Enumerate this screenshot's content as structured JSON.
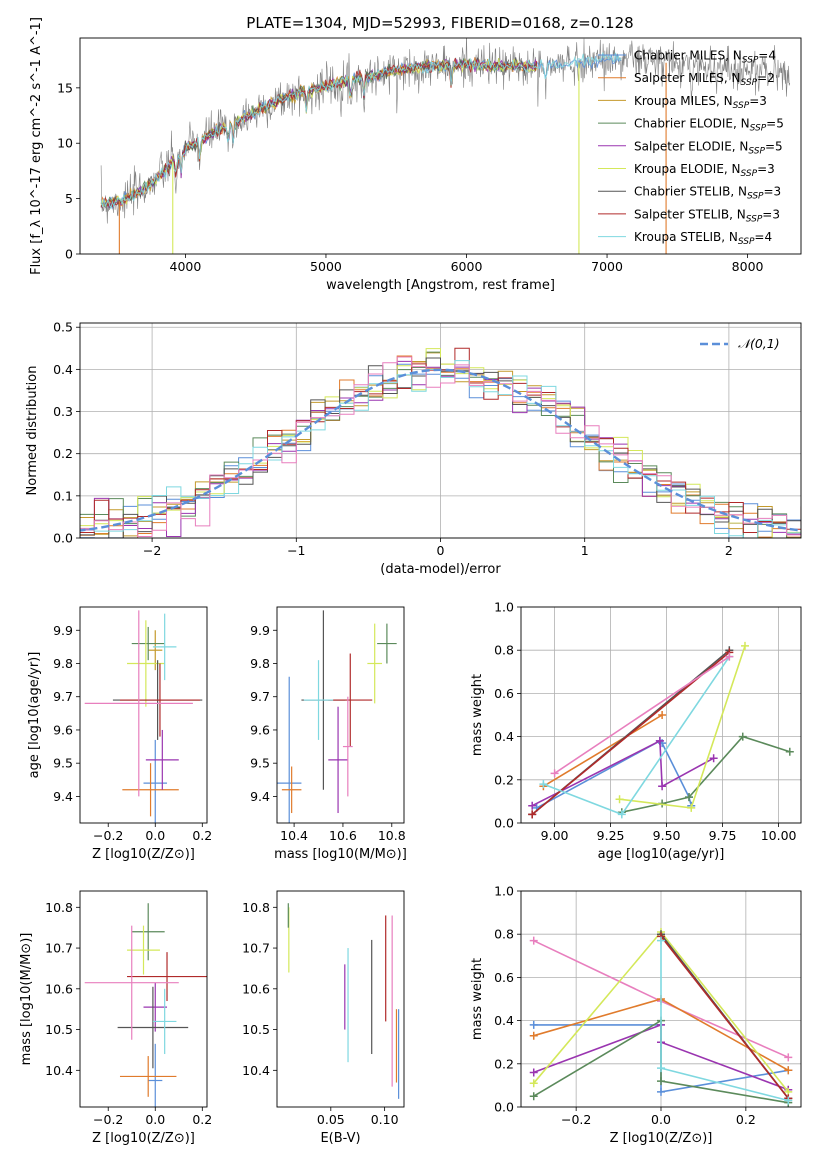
{
  "figure": {
    "title": "PLATE=1304, MJD=52993, FIBERID=0168, z=0.128",
    "colors": {
      "Chabrier MILES": "#5b8fd9",
      "Salpeter MILES": "#e07b2c",
      "Kroupa MILES": "#c49a2c",
      "Chabrier ELODIE": "#5b8a5b",
      "Salpeter ELODIE": "#9a35b0",
      "Kroupa ELODIE": "#d4e85a",
      "Chabrier STELIB": "#555555",
      "Salpeter STELIB": "#b02a2a",
      "Kroupa STELIB": "#7fd8e0",
      "pink": "#e87fbe",
      "normal_curve": "#5b8fd9"
    }
  },
  "chart_data": [
    {
      "id": "spectrum",
      "type": "line",
      "title": "PLATE=1304, MJD=52993, FIBERID=0168, z=0.128",
      "xlabel": "wavelength [Angstrom, rest frame]",
      "ylabel": "Flux [f_λ 10^-17 erg cm^-2 s^-1 A^-1]",
      "xlim": [
        3250,
        8380
      ],
      "ylim": [
        0,
        19.5
      ],
      "xticks": [
        4000,
        5000,
        6000,
        7000,
        8000
      ],
      "yticks": [
        0,
        5,
        10,
        15
      ],
      "legend": "top-right",
      "legend_entries": [
        "Chabrier MILES, N_SSP=4",
        "Salpeter MILES, N_SSP=2",
        "Kroupa MILES, N_SSP=3",
        "Chabrier ELODIE, N_SSP=5",
        "Salpeter ELODIE, N_SSP=5",
        "Kroupa ELODIE, N_SSP=3",
        "Chabrier STELIB, N_SSP=3",
        "Salpeter STELIB, N_SSP=3",
        "Kroupa STELIB, N_SSP=4"
      ],
      "continuum": {
        "x": [
          3400,
          3550,
          3700,
          3850,
          4000,
          4200,
          4400,
          4600,
          4800,
          5000,
          5200,
          5400,
          5600,
          5800,
          6000,
          6200,
          6400,
          6600,
          6800,
          7000,
          7200,
          7400,
          7600,
          7800,
          8000,
          8200,
          8300
        ],
        "y": [
          4.5,
          4.8,
          5.8,
          7.5,
          9.5,
          11.0,
          12.2,
          13.5,
          14.5,
          15.2,
          15.8,
          16.3,
          16.8,
          17.0,
          17.1,
          17.0,
          16.9,
          17.0,
          17.3,
          17.6,
          17.6,
          17.3,
          17.0,
          16.8,
          16.6,
          16.4,
          16.2
        ]
      },
      "model_drops": [
        {
          "series": "Salpeter MILES",
          "x": 3530
        },
        {
          "series": "Kroupa ELODIE",
          "x": 3910
        },
        {
          "series": "Kroupa ELODIE",
          "x": 6800
        },
        {
          "series": "Salpeter MILES",
          "x": 7420
        }
      ]
    },
    {
      "id": "residuals",
      "type": "histogram",
      "xlabel": "(data-model)/error",
      "ylabel": "Normed distribution",
      "xlim": [
        -2.5,
        2.5
      ],
      "ylim": [
        0,
        0.51
      ],
      "xticks": [
        -2,
        -1,
        0,
        1,
        2
      ],
      "yticks": [
        0.0,
        0.1,
        0.2,
        0.3,
        0.4,
        0.5
      ],
      "grid": true,
      "legend": "top-right",
      "legend_entries": [
        "𝒩(0,1)"
      ],
      "bin_width": 0.1
    },
    {
      "id": "age-vs-Z",
      "type": "errorbar",
      "xlabel": "Z [log10(Z/Z⊙)]",
      "ylabel": "age [log10(age/yr)]",
      "xlim": [
        -0.32,
        0.22
      ],
      "ylim": [
        9.32,
        9.97
      ],
      "xticks": [
        -0.2,
        0.0,
        0.2
      ],
      "yticks": [
        9.4,
        9.5,
        9.6,
        9.7,
        9.8,
        9.9
      ],
      "points": [
        {
          "series": "Chabrier MILES",
          "x": 0.0,
          "y": 9.44,
          "xerr": 0.05,
          "yerr": 0.13
        },
        {
          "series": "Salpeter MILES",
          "x": -0.02,
          "y": 9.42,
          "xerr": 0.12,
          "yerr": 0.08
        },
        {
          "series": "Kroupa MILES",
          "x": 0.0,
          "y": 9.84,
          "xerr": 0.03,
          "yerr": 0.06
        },
        {
          "series": "Chabrier ELODIE",
          "x": -0.03,
          "y": 9.86,
          "xerr": 0.07,
          "yerr": 0.05
        },
        {
          "series": "Salpeter ELODIE",
          "x": 0.03,
          "y": 9.51,
          "xerr": 0.07,
          "yerr": 0.09
        },
        {
          "series": "Kroupa ELODIE",
          "x": -0.04,
          "y": 9.8,
          "xerr": 0.08,
          "yerr": 0.13
        },
        {
          "series": "Chabrier STELIB",
          "x": 0.01,
          "y": 9.69,
          "xerr": 0.19,
          "yerr": 0.12
        },
        {
          "series": "Salpeter STELIB",
          "x": 0.02,
          "y": 9.69,
          "xerr": 0.17,
          "yerr": 0.11
        },
        {
          "series": "Kroupa STELIB",
          "x": 0.04,
          "y": 9.85,
          "xerr": 0.05,
          "yerr": 0.1
        },
        {
          "series": "pink",
          "x": -0.07,
          "y": 9.68,
          "xerr": 0.23,
          "yerr": 0.28
        }
      ]
    },
    {
      "id": "age-vs-mass",
      "type": "errorbar",
      "xlabel": "mass [log10(M/M⊙)]",
      "ylabel": "",
      "xlim": [
        10.33,
        10.85
      ],
      "ylim": [
        9.32,
        9.97
      ],
      "xticks": [
        10.4,
        10.6,
        10.8
      ],
      "yticks": [
        9.4,
        9.5,
        9.6,
        9.7,
        9.8,
        9.9
      ],
      "points": [
        {
          "series": "Chabrier MILES",
          "x": 10.38,
          "y": 9.44,
          "xerr": 0.05,
          "yerr": 0.32
        },
        {
          "series": "Salpeter MILES",
          "x": 10.39,
          "y": 9.42,
          "xerr": 0.04,
          "yerr": 0.07
        },
        {
          "series": "Chabrier ELODIE",
          "x": 10.78,
          "y": 9.86,
          "xerr": 0.04,
          "yerr": 0.06
        },
        {
          "series": "Salpeter ELODIE",
          "x": 10.58,
          "y": 9.51,
          "xerr": 0.04,
          "yerr": 0.16
        },
        {
          "series": "Kroupa ELODIE",
          "x": 10.73,
          "y": 9.8,
          "xerr": 0.03,
          "yerr": 0.12
        },
        {
          "series": "Chabrier STELIB",
          "x": 10.52,
          "y": 9.69,
          "xerr": 0.09,
          "yerr": 0.27
        },
        {
          "series": "Salpeter STELIB",
          "x": 10.63,
          "y": 9.69,
          "xerr": 0.09,
          "yerr": 0.14
        },
        {
          "series": "Kroupa STELIB",
          "x": 10.5,
          "y": 9.69,
          "xerr": 0.06,
          "yerr": 0.12
        },
        {
          "series": "pink",
          "x": 10.62,
          "y": 9.55,
          "xerr": 0.02,
          "yerr": 0.15
        }
      ]
    },
    {
      "id": "weight-vs-age",
      "type": "line",
      "xlabel": "age [log10(age/yr)]",
      "ylabel": "mass weight",
      "xlim": [
        8.85,
        10.1
      ],
      "ylim": [
        0,
        1
      ],
      "xticks": [
        9.0,
        9.25,
        9.5,
        9.75,
        10.0
      ],
      "yticks": [
        0.0,
        0.2,
        0.4,
        0.6,
        0.8,
        1.0
      ],
      "grid": true,
      "series": [
        {
          "color": "Chabrier MILES",
          "x": [
            8.92,
            9.47,
            9.48,
            9.6,
            9.61
          ],
          "y": [
            0.07,
            0.38,
            0.37,
            0.12,
            0.08
          ]
        },
        {
          "color": "Salpeter MILES",
          "x": [
            8.95,
            9.48
          ],
          "y": [
            0.17,
            0.5
          ]
        },
        {
          "color": "Chabrier ELODIE",
          "x": [
            9.3,
            9.48,
            9.6,
            9.84,
            10.05
          ],
          "y": [
            0.05,
            0.09,
            0.12,
            0.4,
            0.33
          ]
        },
        {
          "color": "Salpeter ELODIE",
          "x": [
            8.9,
            9.47,
            9.48,
            9.71
          ],
          "y": [
            0.08,
            0.38,
            0.17,
            0.3
          ]
        },
        {
          "color": "Kroupa ELODIE",
          "x": [
            9.29,
            9.61,
            9.85
          ],
          "y": [
            0.11,
            0.07,
            0.82
          ]
        },
        {
          "color": "Chabrier STELIB",
          "x": [
            8.9,
            9.78
          ],
          "y": [
            0.04,
            0.8
          ]
        },
        {
          "color": "Salpeter STELIB",
          "x": [
            8.9,
            9.78
          ],
          "y": [
            0.04,
            0.79
          ]
        },
        {
          "color": "Kroupa STELIB",
          "x": [
            8.95,
            9.3,
            9.78
          ],
          "y": [
            0.18,
            0.04,
            0.77
          ]
        },
        {
          "color": "pink",
          "x": [
            9.0,
            9.78
          ],
          "y": [
            0.23,
            0.77
          ]
        }
      ]
    },
    {
      "id": "mass-vs-Z",
      "type": "errorbar",
      "xlabel": "Z [log10(Z/Z⊙)]",
      "ylabel": "mass [log10(M/M⊙)]",
      "xlim": [
        -0.32,
        0.22
      ],
      "ylim": [
        10.31,
        10.84
      ],
      "xticks": [
        -0.2,
        0.0,
        0.2
      ],
      "yticks": [
        10.4,
        10.5,
        10.6,
        10.7,
        10.8
      ],
      "points": [
        {
          "series": "Chabrier MILES",
          "x": 0.0,
          "y": 10.375,
          "xerr": 0.03,
          "yerr": 0.09
        },
        {
          "series": "Salpeter MILES",
          "x": -0.03,
          "y": 10.385,
          "xerr": 0.12,
          "yerr": 0.05
        },
        {
          "series": "Chabrier ELODIE",
          "x": -0.03,
          "y": 10.74,
          "xerr": 0.07,
          "yerr": 0.07
        },
        {
          "series": "Salpeter ELODIE",
          "x": 0.0,
          "y": 10.555,
          "xerr": 0.05,
          "yerr": 0.06
        },
        {
          "series": "Kroupa ELODIE",
          "x": -0.05,
          "y": 10.695,
          "xerr": 0.07,
          "yerr": 0.06
        },
        {
          "series": "Chabrier STELIB",
          "x": -0.01,
          "y": 10.505,
          "xerr": 0.15,
          "yerr": 0.1
        },
        {
          "series": "Salpeter STELIB",
          "x": 0.05,
          "y": 10.63,
          "xerr": 0.17,
          "yerr": 0.06
        },
        {
          "series": "Kroupa STELIB",
          "x": 0.04,
          "y": 10.52,
          "xerr": 0.05,
          "yerr": 0.08
        },
        {
          "series": "pink",
          "x": -0.1,
          "y": 10.615,
          "xerr": 0.2,
          "yerr": 0.14
        }
      ]
    },
    {
      "id": "mass-vs-EBV",
      "type": "errorbar",
      "xlabel": "E(B-V)",
      "ylabel": "",
      "xlim": [
        0.0,
        0.118
      ],
      "ylim": [
        10.31,
        10.84
      ],
      "xticks": [
        0.05,
        0.1
      ],
      "yticks": [
        10.4,
        10.5,
        10.6,
        10.7,
        10.8
      ],
      "points": [
        {
          "series": "Kroupa ELODIE",
          "x": 0.011,
          "y": 10.72,
          "yerr": 0.08
        },
        {
          "series": "Chabrier ELODIE",
          "x": 0.0105,
          "y": 10.78,
          "yerr": 0.03
        },
        {
          "series": "Salpeter ELODIE",
          "x": 0.063,
          "y": 10.58,
          "yerr": 0.08
        },
        {
          "series": "Kroupa STELIB",
          "x": 0.066,
          "y": 10.56,
          "yerr": 0.14
        },
        {
          "series": "Chabrier STELIB",
          "x": 0.088,
          "y": 10.58,
          "yerr": 0.14
        },
        {
          "series": "Salpeter STELIB",
          "x": 0.101,
          "y": 10.65,
          "yerr": 0.13
        },
        {
          "series": "pink",
          "x": 0.107,
          "y": 10.57,
          "yerr": 0.21
        },
        {
          "series": "Salpeter MILES",
          "x": 0.111,
          "y": 10.46,
          "yerr": 0.09
        },
        {
          "series": "Chabrier MILES",
          "x": 0.113,
          "y": 10.44,
          "yerr": 0.11
        }
      ]
    },
    {
      "id": "weight-vs-Z",
      "type": "line",
      "xlabel": "Z [log10(Z/Z⊙)]",
      "ylabel": "mass weight",
      "xlim": [
        -0.33,
        0.33
      ],
      "ylim": [
        0,
        1
      ],
      "xticks": [
        -0.2,
        0.0,
        0.2
      ],
      "yticks": [
        0.0,
        0.2,
        0.4,
        0.6,
        0.8,
        1.0
      ],
      "grid": true,
      "series": [
        {
          "color": "pink",
          "x": [
            -0.3,
            0.0,
            0.3
          ],
          "y": [
            0.77,
            0.49,
            0.23
          ]
        },
        {
          "color": "Chabrier MILES",
          "x": [
            -0.3,
            0.0,
            0.0,
            0.3
          ],
          "y": [
            0.38,
            0.38,
            0.07,
            0.17
          ]
        },
        {
          "color": "Salpeter MILES",
          "x": [
            -0.3,
            0.0,
            0.3
          ],
          "y": [
            0.33,
            0.5,
            0.17
          ]
        },
        {
          "color": "Salpeter ELODIE",
          "x": [
            -0.3,
            0.0,
            0.0,
            0.3
          ],
          "y": [
            0.16,
            0.38,
            0.3,
            0.08
          ]
        },
        {
          "color": "Kroupa ELODIE",
          "x": [
            -0.3,
            0.0,
            0.3
          ],
          "y": [
            0.11,
            0.81,
            0.07
          ]
        },
        {
          "color": "Chabrier ELODIE",
          "x": [
            -0.3,
            0.0,
            0.0,
            0.3
          ],
          "y": [
            0.05,
            0.4,
            0.12,
            0.02
          ]
        },
        {
          "color": "Chabrier STELIB",
          "x": [
            0.0,
            0.3
          ],
          "y": [
            0.8,
            0.04
          ]
        },
        {
          "color": "Salpeter STELIB",
          "x": [
            0.0,
            0.3
          ],
          "y": [
            0.79,
            0.04
          ]
        },
        {
          "color": "Kroupa STELIB",
          "x": [
            0.0,
            0.0,
            0.3
          ],
          "y": [
            0.77,
            0.18,
            0.03
          ]
        }
      ]
    }
  ]
}
